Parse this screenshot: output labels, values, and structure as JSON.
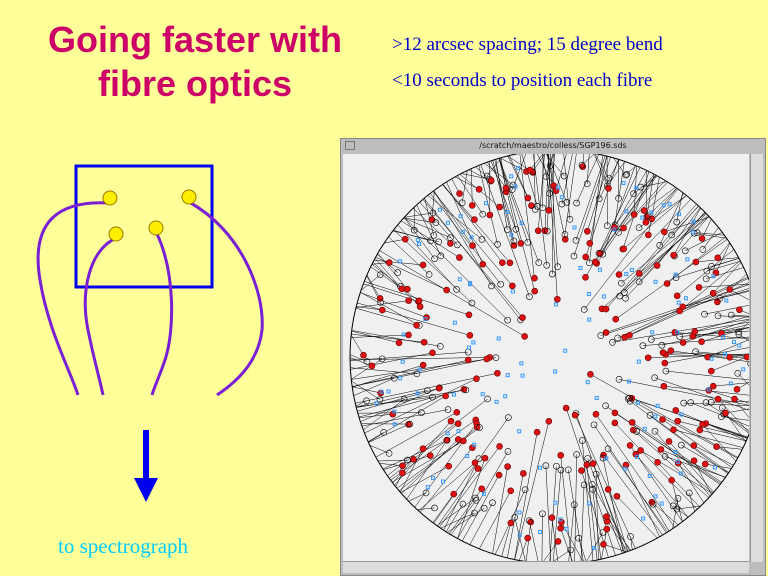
{
  "slide": {
    "title_line1": "Going faster with",
    "title_line2": "fibre optics",
    "notes": [
      ">12 arcsec spacing; 15 degree bend",
      "<10 seconds to position each fibre"
    ],
    "caption": "to spectrograph"
  },
  "window": {
    "title": "/scratch/maestro/colless/SGP196.sds"
  },
  "colors": {
    "title": "#cc0066",
    "notes": "#0000cc",
    "caption": "#00ccff",
    "fibre": "#7a1fd6",
    "box": "#0000ee",
    "arrow": "#0000ee",
    "fibre_end": "#ffee00"
  }
}
